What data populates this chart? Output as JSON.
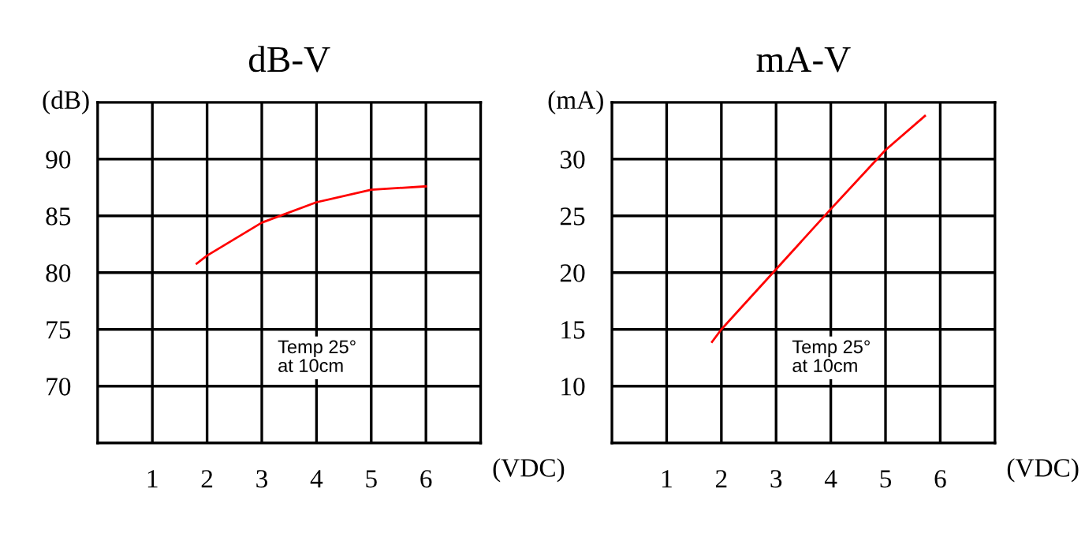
{
  "chart_data": [
    {
      "type": "line",
      "title": "dB-V",
      "xlabel": "(VDC)",
      "ylabel": "(dB)",
      "series": [
        {
          "color": "#ff0000",
          "x": [
            1.81,
            2,
            3,
            4,
            5,
            6
          ],
          "values": [
            80.8,
            81.5,
            84.4,
            86.2,
            87.3,
            87.6
          ]
        }
      ],
      "xlim": [
        0,
        7
      ],
      "xticks": [
        1,
        2,
        3,
        4,
        5,
        6
      ],
      "ylim": [
        65,
        95
      ],
      "yticks": [
        70,
        75,
        80,
        85,
        90
      ],
      "grid": true,
      "annotations": [
        "Temp 25°\nat 10cm"
      ]
    },
    {
      "type": "line",
      "title": "mA-V",
      "xlabel": "(VDC)",
      "ylabel": "(mA)",
      "series": [
        {
          "color": "#ff0000",
          "x": [
            1.83,
            2,
            3,
            4,
            5,
            5.72
          ],
          "values": [
            13.9,
            15,
            20.3,
            25.6,
            30.8,
            33.8
          ]
        }
      ],
      "xlim": [
        0,
        7
      ],
      "xticks": [
        1,
        2,
        3,
        4,
        5,
        6
      ],
      "ylim": [
        5,
        35
      ],
      "yticks": [
        10,
        15,
        20,
        25,
        30
      ],
      "grid": true,
      "annotations": [
        "Temp 25°\nat 10cm"
      ]
    }
  ]
}
